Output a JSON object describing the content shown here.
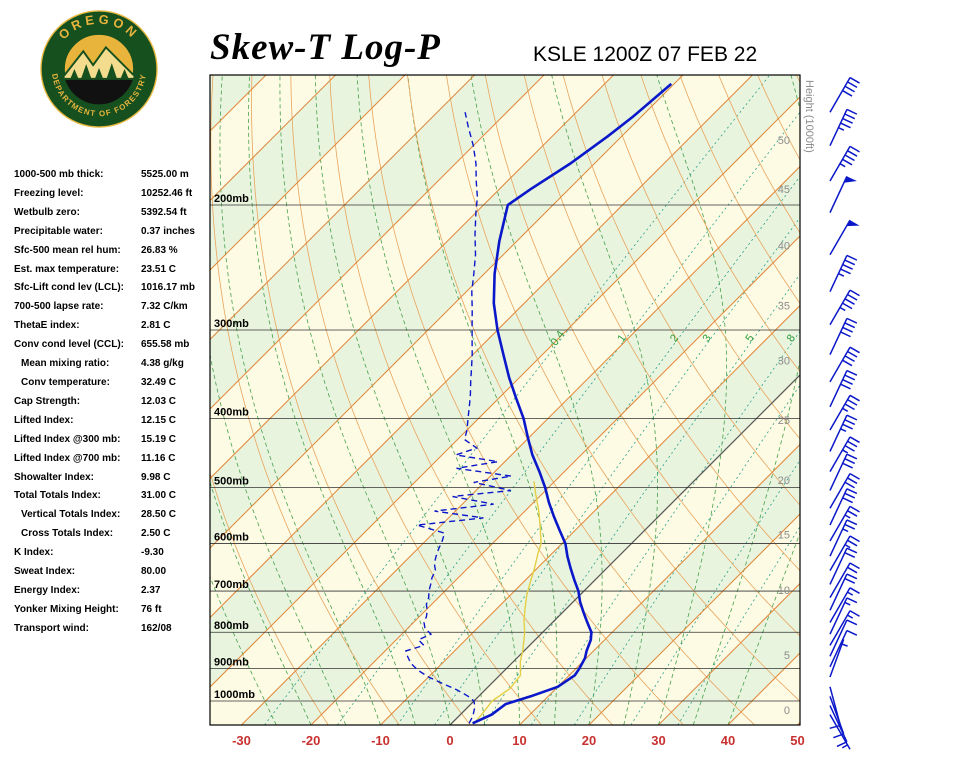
{
  "header": {
    "title": "Skew-T Log-P",
    "station_line": "KSLE 1200Z 07 FEB 22",
    "logo": {
      "arc_top": "OREGON",
      "arc_bottom": "DEPARTMENT OF FORESTRY"
    }
  },
  "stats": [
    {
      "label": "1000-500 mb thick:",
      "value": "5525.00 m",
      "indent": false
    },
    {
      "label": "Freezing level:",
      "value": "10252.46 ft",
      "indent": false
    },
    {
      "label": "Wetbulb zero:",
      "value": "5392.54 ft",
      "indent": false
    },
    {
      "label": "Precipitable water:",
      "value": "0.37 inches",
      "indent": false
    },
    {
      "label": "Sfc-500 mean rel hum:",
      "value": "26.83 %",
      "indent": false
    },
    {
      "label": "Est. max temperature:",
      "value": "23.51 C",
      "indent": false
    },
    {
      "label": "Sfc-Lift cond lev (LCL):",
      "value": "1016.17 mb",
      "indent": false
    },
    {
      "label": "700-500 lapse rate:",
      "value": "7.32 C/km",
      "indent": false
    },
    {
      "label": "ThetaE index:",
      "value": "2.81 C",
      "indent": false
    },
    {
      "label": "Conv cond level (CCL):",
      "value": "655.58 mb",
      "indent": false
    },
    {
      "label": "Mean mixing ratio:",
      "value": "4.38 g/kg",
      "indent": true
    },
    {
      "label": "Conv temperature:",
      "value": "32.49 C",
      "indent": true
    },
    {
      "label": "Cap Strength:",
      "value": "12.03 C",
      "indent": false
    },
    {
      "label": "Lifted Index:",
      "value": "12.15 C",
      "indent": false
    },
    {
      "label": "Lifted Index @300 mb:",
      "value": "15.19 C",
      "indent": false
    },
    {
      "label": "Lifted Index @700 mb:",
      "value": "11.16 C",
      "indent": false
    },
    {
      "label": "Showalter Index:",
      "value": "9.98 C",
      "indent": false
    },
    {
      "label": "Total Totals Index:",
      "value": "31.00 C",
      "indent": false
    },
    {
      "label": "Vertical Totals Index:",
      "value": "28.50 C",
      "indent": true
    },
    {
      "label": "Cross Totals Index:",
      "value": "2.50 C",
      "indent": true
    },
    {
      "label": "K Index:",
      "value": "-9.30",
      "indent": false
    },
    {
      "label": "Sweat Index:",
      "value": "80.00",
      "indent": false
    },
    {
      "label": "Energy Index:",
      "value": "2.37",
      "indent": false
    },
    {
      "label": "Yonker Mixing Height:",
      "value": "76 ft",
      "indent": false
    },
    {
      "label": "Transport wind:",
      "value": "162/08",
      "indent": false
    }
  ],
  "chart_data": {
    "type": "skewt-log-p",
    "pressure_axis": {
      "unit": "mb",
      "ticks": [
        200,
        300,
        400,
        500,
        600,
        700,
        800,
        900,
        1000
      ]
    },
    "temp_axis": {
      "unit": "C",
      "ticks": [
        -30,
        -20,
        -10,
        0,
        10,
        20,
        30,
        40,
        50
      ]
    },
    "height_axis": {
      "label": "Height (1000ft)",
      "ticks": [
        [
          0,
          1030
        ],
        [
          5,
          861
        ],
        [
          10,
          697
        ],
        [
          15,
          583
        ],
        [
          20,
          488
        ],
        [
          25,
          402
        ],
        [
          30,
          331
        ],
        [
          35,
          277
        ],
        [
          40,
          228
        ],
        [
          45,
          190
        ],
        [
          50,
          162
        ]
      ]
    },
    "mixing_ratio": {
      "labeled": [
        0.4,
        1,
        2,
        3,
        5,
        8
      ],
      "extra": [
        12,
        20,
        30
      ],
      "label_pressure": 310
    },
    "temperature_profile": [
      [
        1075,
        3
      ],
      [
        1045,
        4.5
      ],
      [
        1010,
        5
      ],
      [
        985,
        7.5
      ],
      [
        955,
        10
      ],
      [
        920,
        10.8
      ],
      [
        900,
        10.5
      ],
      [
        870,
        9.8
      ],
      [
        850,
        9
      ],
      [
        820,
        8
      ],
      [
        800,
        7
      ],
      [
        775,
        5
      ],
      [
        750,
        3
      ],
      [
        725,
        1
      ],
      [
        700,
        -0.8
      ],
      [
        675,
        -3
      ],
      [
        650,
        -5.2
      ],
      [
        625,
        -7.4
      ],
      [
        600,
        -9.5
      ],
      [
        575,
        -12.2
      ],
      [
        550,
        -15
      ],
      [
        525,
        -17.8
      ],
      [
        500,
        -20.5
      ],
      [
        475,
        -23.6
      ],
      [
        450,
        -27
      ],
      [
        425,
        -30.2
      ],
      [
        400,
        -33.5
      ],
      [
        375,
        -37.4
      ],
      [
        350,
        -41.5
      ],
      [
        325,
        -45.6
      ],
      [
        300,
        -50
      ],
      [
        275,
        -54.4
      ],
      [
        250,
        -58.5
      ],
      [
        225,
        -62.5
      ],
      [
        200,
        -66.5
      ],
      [
        190,
        -65.5
      ],
      [
        175,
        -63.5
      ],
      [
        160,
        -62
      ],
      [
        150,
        -61.2
      ],
      [
        135,
        -60.4
      ]
    ],
    "dewpoint_profile": [
      [
        1075,
        2.5
      ],
      [
        1050,
        2
      ],
      [
        1020,
        1
      ],
      [
        1000,
        0
      ],
      [
        985,
        -1.5
      ],
      [
        965,
        -4
      ],
      [
        945,
        -7
      ],
      [
        925,
        -10
      ],
      [
        905,
        -12.5
      ],
      [
        885,
        -14.5
      ],
      [
        865,
        -16
      ],
      [
        850,
        -17
      ],
      [
        835,
        -15.2
      ],
      [
        820,
        -16.8
      ],
      [
        805,
        -15.8
      ],
      [
        790,
        -17.5
      ],
      [
        775,
        -18.5
      ],
      [
        760,
        -19
      ],
      [
        745,
        -19.8
      ],
      [
        730,
        -20.8
      ],
      [
        715,
        -21.4
      ],
      [
        700,
        -22.3
      ],
      [
        685,
        -23
      ],
      [
        670,
        -23.8
      ],
      [
        655,
        -24.3
      ],
      [
        640,
        -25.5
      ],
      [
        625,
        -26.3
      ],
      [
        610,
        -27
      ],
      [
        595,
        -27.6
      ],
      [
        580,
        -28.4
      ],
      [
        565,
        -33.5
      ],
      [
        552,
        -25
      ],
      [
        540,
        -33
      ],
      [
        528,
        -25.5
      ],
      [
        515,
        -32.5
      ],
      [
        505,
        -25
      ],
      [
        492,
        -31.5
      ],
      [
        482,
        -27
      ],
      [
        470,
        -36
      ],
      [
        460,
        -31
      ],
      [
        450,
        -38
      ],
      [
        440,
        -36
      ],
      [
        428,
        -39
      ],
      [
        415,
        -40
      ],
      [
        400,
        -41.5
      ],
      [
        385,
        -43
      ],
      [
        370,
        -44.6
      ],
      [
        355,
        -46.4
      ],
      [
        340,
        -48.2
      ],
      [
        325,
        -50.1
      ],
      [
        310,
        -52.2
      ],
      [
        295,
        -54.4
      ],
      [
        280,
        -56.7
      ],
      [
        265,
        -59.2
      ],
      [
        250,
        -61.5
      ],
      [
        235,
        -64
      ],
      [
        220,
        -67
      ],
      [
        205,
        -70
      ],
      [
        195,
        -72
      ],
      [
        185,
        -74.5
      ],
      [
        175,
        -77
      ],
      [
        165,
        -80
      ],
      [
        155,
        -83.5
      ],
      [
        148,
        -86
      ]
    ],
    "wetbulb_profile": [
      [
        1070,
        3.2
      ],
      [
        1040,
        3
      ],
      [
        1000,
        2.6
      ],
      [
        960,
        3.4
      ],
      [
        920,
        3
      ],
      [
        880,
        1
      ],
      [
        850,
        -0.2
      ],
      [
        820,
        -1.6
      ],
      [
        800,
        -2.6
      ],
      [
        770,
        -4.4
      ],
      [
        740,
        -6
      ],
      [
        710,
        -7.6
      ],
      [
        680,
        -9
      ],
      [
        650,
        -10.4
      ],
      [
        620,
        -12
      ],
      [
        600,
        -13
      ],
      [
        570,
        -15.4
      ],
      [
        540,
        -18
      ],
      [
        510,
        -21
      ],
      [
        490,
        -23
      ]
    ],
    "winds": [
      [
        1045,
        150,
        5
      ],
      [
        1015,
        155,
        8
      ],
      [
        985,
        160,
        8
      ],
      [
        955,
        165,
        10
      ],
      [
        925,
        20,
        5
      ],
      [
        895,
        25,
        10
      ],
      [
        865,
        25,
        10
      ],
      [
        835,
        30,
        15
      ],
      [
        805,
        25,
        15
      ],
      [
        775,
        30,
        15
      ],
      [
        745,
        25,
        20
      ],
      [
        715,
        30,
        20
      ],
      [
        685,
        25,
        20
      ],
      [
        655,
        30,
        25
      ],
      [
        625,
        25,
        25
      ],
      [
        595,
        30,
        25
      ],
      [
        565,
        25,
        30
      ],
      [
        535,
        30,
        30
      ],
      [
        505,
        25,
        30
      ],
      [
        475,
        30,
        35
      ],
      [
        445,
        25,
        35
      ],
      [
        415,
        30,
        35
      ],
      [
        385,
        25,
        40
      ],
      [
        355,
        30,
        40
      ],
      [
        325,
        25,
        40
      ],
      [
        295,
        30,
        45
      ],
      [
        265,
        25,
        45
      ],
      [
        235,
        30,
        50
      ],
      [
        205,
        25,
        50
      ],
      [
        185,
        30,
        45
      ],
      [
        165,
        25,
        45
      ],
      [
        148,
        30,
        40
      ]
    ],
    "colors": {
      "band_cream": "#fdfbe4",
      "band_green": "#e9f4de",
      "isotherm": "#e0883a",
      "isotherm_zero": "#5a5a5a",
      "dry_adiabat": "#e8a45c",
      "moist_adiabat": "#46a04c",
      "mixing_ratio": "#2aa08c",
      "mixing_label": "#2e9e3e",
      "pressure_line": "#333333",
      "temp_axis": "#c8312f",
      "height_axis": "#8c8c8c",
      "profile": "#0b18c9",
      "wetbulb": "#e3cf45",
      "barb": "#0b18c9"
    }
  }
}
